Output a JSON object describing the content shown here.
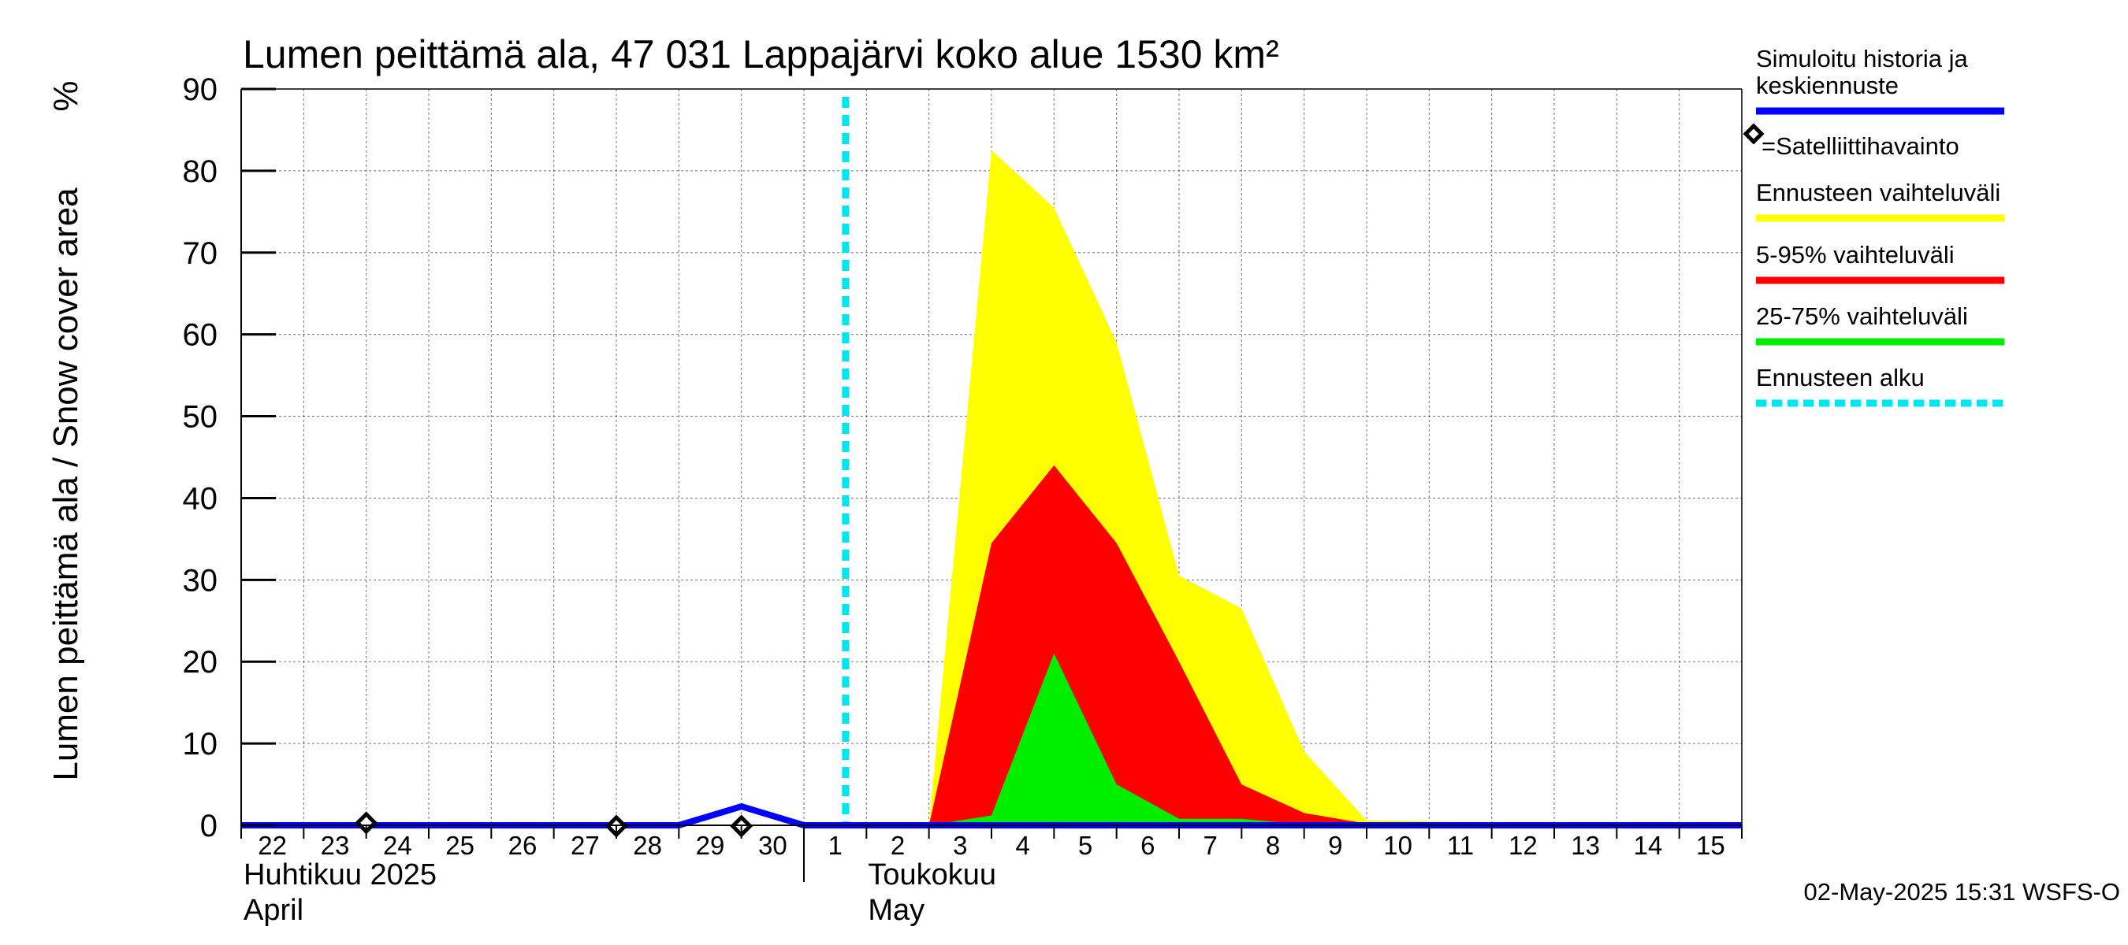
{
  "chart_data": {
    "type": "area",
    "title": "Lumen peittämä ala, 47 031 Lappajärvi koko alue 1530 km²",
    "ylabel": "Lumen peittämä ala / Snow cover area",
    "yunit": "%",
    "ylim": [
      0,
      90
    ],
    "yticks": [
      0,
      10,
      20,
      30,
      40,
      50,
      60,
      70,
      80,
      90
    ],
    "xlim": [
      "2025-04-22",
      "2025-05-16"
    ],
    "x_tick_labels": [
      "22",
      "23",
      "24",
      "25",
      "26",
      "27",
      "28",
      "29",
      "30",
      "1",
      "2",
      "3",
      "4",
      "5",
      "6",
      "7",
      "8",
      "9",
      "10",
      "11",
      "12",
      "13",
      "14",
      "15"
    ],
    "month_labels": [
      {
        "fi": "Huhtikuu  2025",
        "en": "April"
      },
      {
        "fi": "Toukokuu",
        "en": "May"
      }
    ],
    "grid": true,
    "forecast_start": "2025-05-02",
    "series": [
      {
        "name": "Ennusteen vaihteluväli",
        "color": "#ffff00",
        "x": [
          "2025-05-03",
          "2025-05-04",
          "2025-05-05",
          "2025-05-06",
          "2025-05-07",
          "2025-05-08",
          "2025-05-09",
          "2025-05-10",
          "2025-05-11",
          "2025-05-12"
        ],
        "upper": [
          0,
          82.5,
          75.5,
          59,
          30.5,
          26.5,
          9,
          0.6,
          0.5,
          0.2
        ],
        "lower": [
          0,
          0,
          0,
          0,
          0,
          0,
          0,
          0,
          0,
          0
        ]
      },
      {
        "name": "5-95% vaihteluväli",
        "color": "#ff0000",
        "x": [
          "2025-05-03",
          "2025-05-04",
          "2025-05-05",
          "2025-05-06",
          "2025-05-07",
          "2025-05-08",
          "2025-05-09",
          "2025-05-10"
        ],
        "upper": [
          0,
          34.5,
          44,
          34.5,
          20,
          5,
          1.5,
          0.2
        ],
        "lower": [
          0,
          0,
          0,
          0,
          0,
          0,
          0,
          0
        ]
      },
      {
        "name": "25-75% vaihteluväli",
        "color": "#00ee00",
        "x": [
          "2025-05-03",
          "2025-05-04",
          "2025-05-05",
          "2025-05-06",
          "2025-05-07",
          "2025-05-08",
          "2025-05-09"
        ],
        "upper": [
          0,
          1.2,
          21,
          5,
          0.8,
          0.8,
          0.1
        ],
        "lower": [
          0,
          0,
          0,
          0,
          0,
          0,
          0
        ]
      },
      {
        "name": "Simuloitu historia ja keskiennuste",
        "color": "#0000ff",
        "x": [
          "2025-04-22",
          "2025-04-29",
          "2025-04-30",
          "2025-05-01",
          "2025-05-16"
        ],
        "y": [
          0,
          0,
          2.3,
          0,
          0
        ]
      },
      {
        "name": "=Satelliittihavainto",
        "color": "#000000",
        "marker": "diamond",
        "x": [
          "2025-04-24",
          "2025-04-28",
          "2025-04-30"
        ],
        "y": [
          0.3,
          -0.1,
          -0.1
        ]
      }
    ],
    "legend": {
      "position": "right",
      "entries": [
        {
          "label": "Simuloitu historia ja keskiennuste",
          "color": "#0000ff",
          "style": "line"
        },
        {
          "label": "=Satelliittihavainto",
          "color": "#000000",
          "style": "diamond"
        },
        {
          "label": "Ennusteen vaihteluväli",
          "color": "#ffff00",
          "style": "line"
        },
        {
          "label": "5-95% vaihteluväli",
          "color": "#ff0000",
          "style": "line"
        },
        {
          "label": "25-75% vaihteluväli",
          "color": "#00ee00",
          "style": "line"
        },
        {
          "label": "Ennusteen alku",
          "color": "#00e5ee",
          "style": "dashed"
        }
      ]
    },
    "footer": "02-May-2025 15:31 WSFS-O"
  }
}
